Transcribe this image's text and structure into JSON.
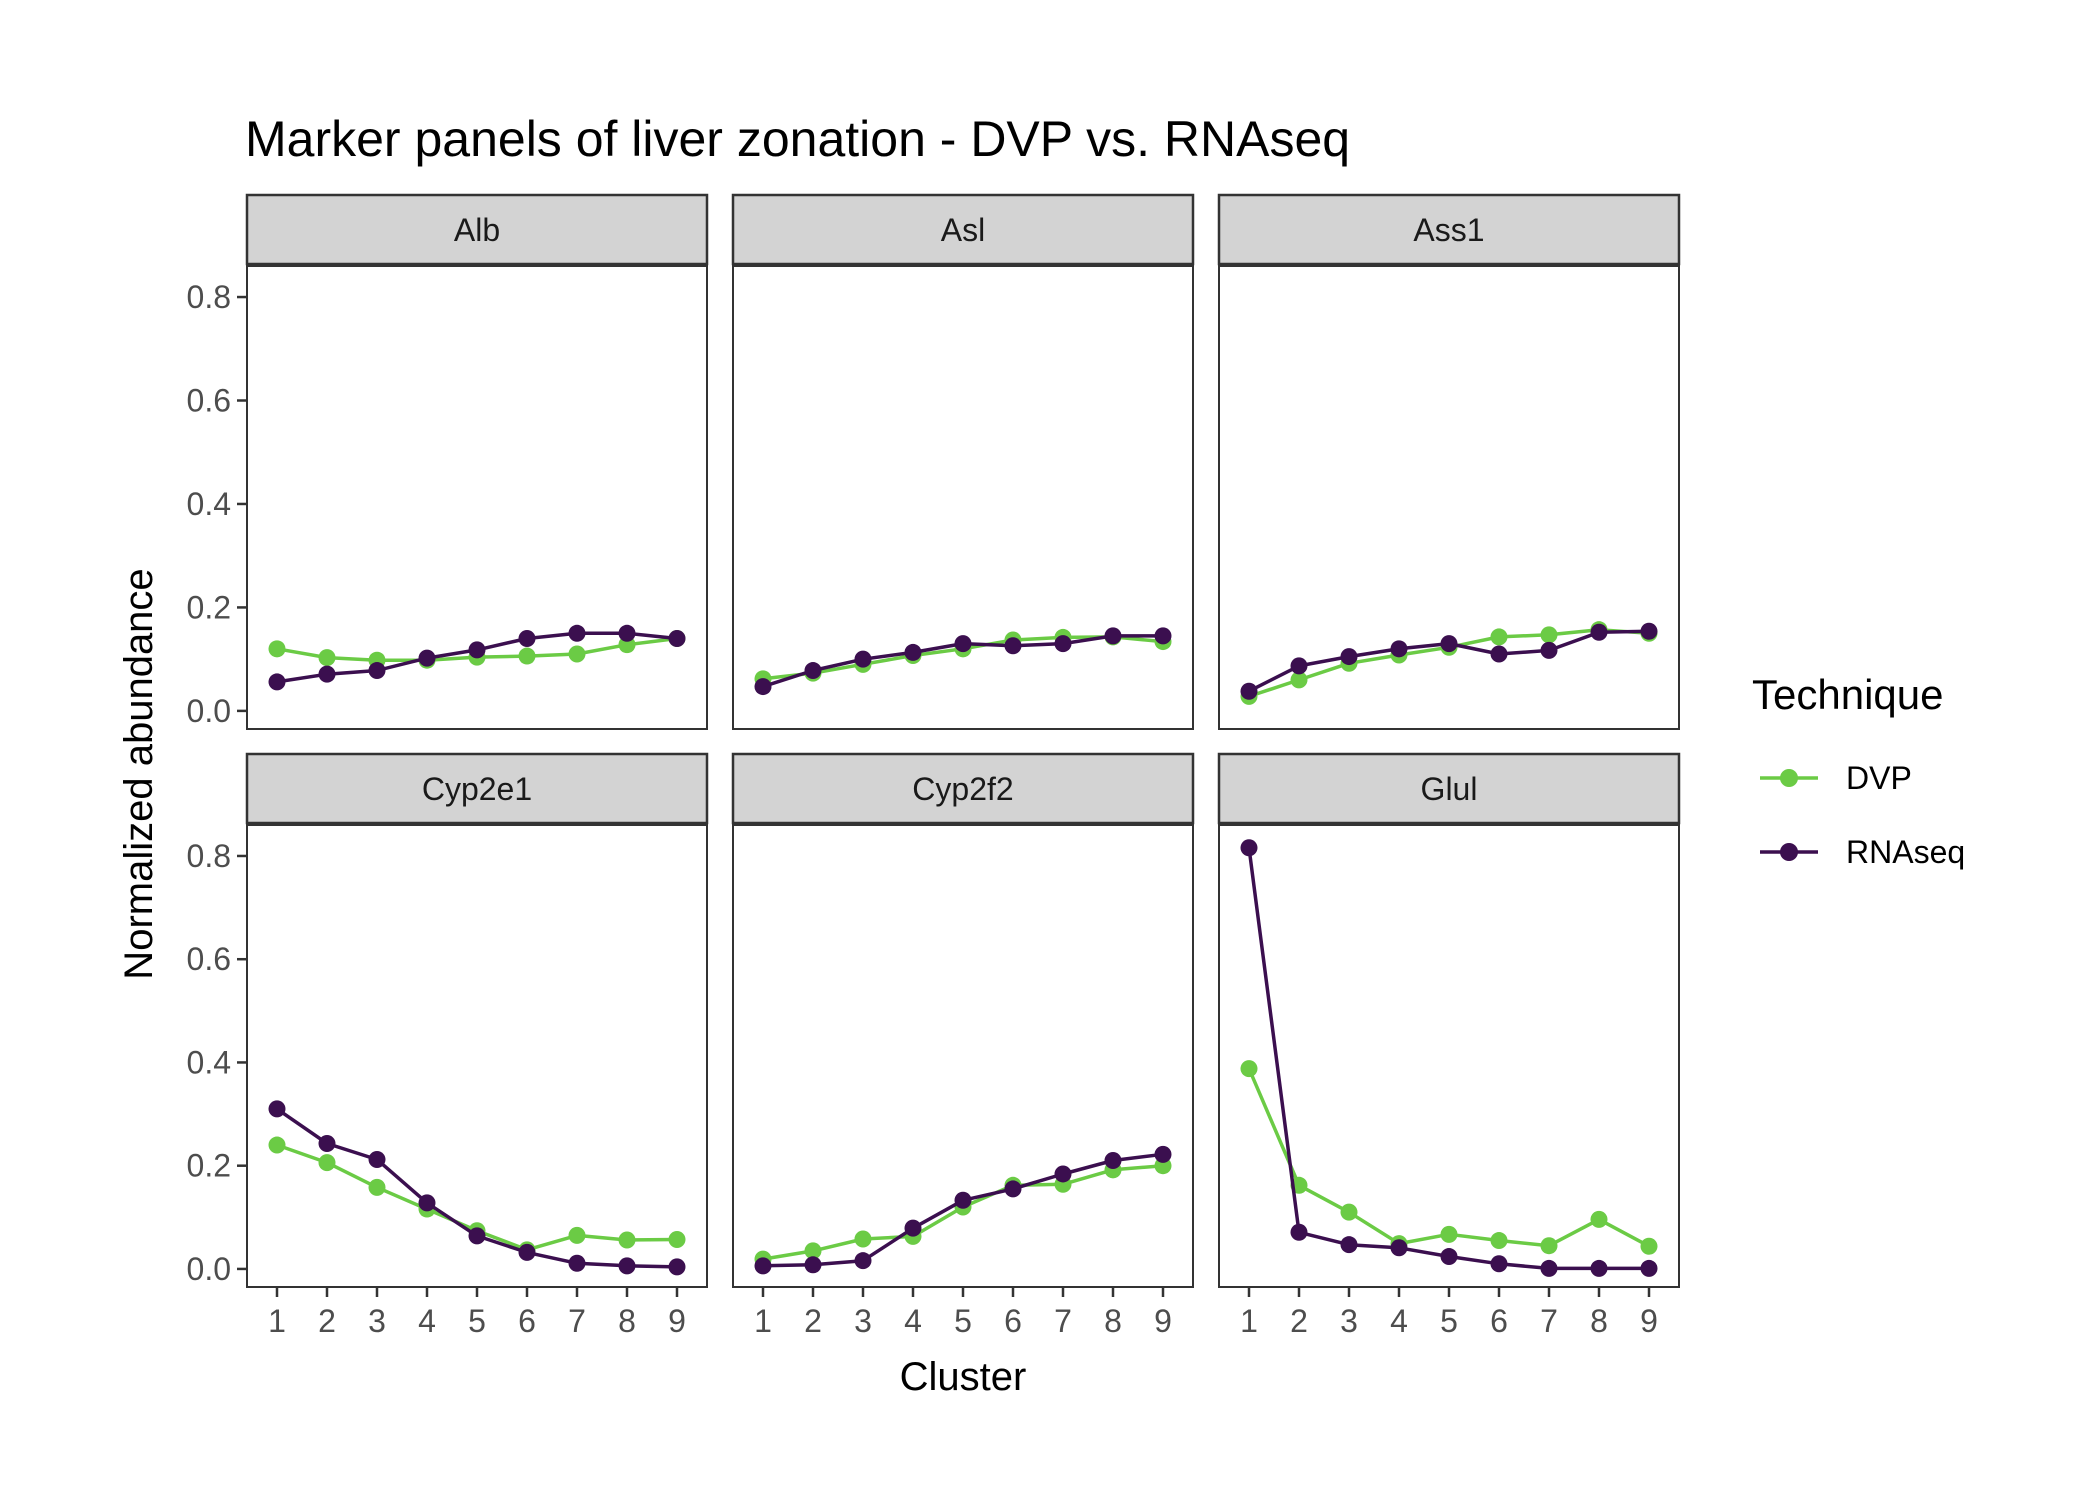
{
  "chart_data": {
    "type": "line",
    "title": "Marker panels of liver zonation - DVP vs. RNAseq",
    "xlabel": "Cluster",
    "ylabel": "Normalized abundance",
    "x": [
      1,
      2,
      3,
      4,
      5,
      6,
      7,
      8,
      9
    ],
    "ylim": [
      -0.035,
      0.86
    ],
    "yticks": [
      0.0,
      0.2,
      0.4,
      0.6,
      0.8
    ],
    "ytick_labels": [
      "0.0",
      "0.2",
      "0.4",
      "0.6",
      "0.8"
    ],
    "grid": false,
    "legend": {
      "title": "Technique",
      "position": "right",
      "entries": [
        {
          "name": "DVP",
          "color": "#6BCB45"
        },
        {
          "name": "RNAseq",
          "color": "#3B0F4F"
        }
      ]
    },
    "panels": [
      {
        "name": "Alb",
        "series": [
          {
            "name": "DVP",
            "values": [
              0.12,
              0.103,
              0.098,
              0.098,
              0.104,
              0.106,
              0.11,
              0.128,
              0.14
            ]
          },
          {
            "name": "RNAseq",
            "values": [
              0.056,
              0.071,
              0.078,
              0.102,
              0.118,
              0.14,
              0.15,
              0.15,
              0.14
            ]
          }
        ]
      },
      {
        "name": "Asl",
        "series": [
          {
            "name": "DVP",
            "values": [
              0.062,
              0.073,
              0.09,
              0.107,
              0.12,
              0.137,
              0.142,
              0.143,
              0.134
            ]
          },
          {
            "name": "RNAseq",
            "values": [
              0.047,
              0.078,
              0.1,
              0.113,
              0.13,
              0.126,
              0.13,
              0.145,
              0.145
            ]
          }
        ]
      },
      {
        "name": "Ass1",
        "series": [
          {
            "name": "DVP",
            "values": [
              0.028,
              0.06,
              0.092,
              0.108,
              0.123,
              0.143,
              0.147,
              0.157,
              0.15
            ]
          },
          {
            "name": "RNAseq",
            "values": [
              0.038,
              0.087,
              0.105,
              0.12,
              0.13,
              0.11,
              0.117,
              0.152,
              0.154
            ]
          }
        ]
      },
      {
        "name": "Cyp2e1",
        "series": [
          {
            "name": "DVP",
            "values": [
              0.24,
              0.206,
              0.158,
              0.116,
              0.074,
              0.037,
              0.065,
              0.056,
              0.057
            ]
          },
          {
            "name": "RNAseq",
            "values": [
              0.31,
              0.243,
              0.212,
              0.128,
              0.064,
              0.032,
              0.011,
              0.006,
              0.004
            ]
          }
        ]
      },
      {
        "name": "Cyp2f2",
        "series": [
          {
            "name": "DVP",
            "values": [
              0.019,
              0.035,
              0.058,
              0.063,
              0.12,
              0.162,
              0.164,
              0.192,
              0.2
            ]
          },
          {
            "name": "RNAseq",
            "values": [
              0.006,
              0.008,
              0.016,
              0.079,
              0.133,
              0.155,
              0.184,
              0.21,
              0.222
            ]
          }
        ]
      },
      {
        "name": "Glul",
        "series": [
          {
            "name": "DVP",
            "values": [
              0.388,
              0.162,
              0.11,
              0.049,
              0.067,
              0.055,
              0.045,
              0.096,
              0.044
            ]
          },
          {
            "name": "RNAseq",
            "values": [
              0.816,
              0.071,
              0.047,
              0.041,
              0.024,
              0.01,
              0.001,
              0.001,
              0.001
            ]
          }
        ]
      }
    ]
  }
}
